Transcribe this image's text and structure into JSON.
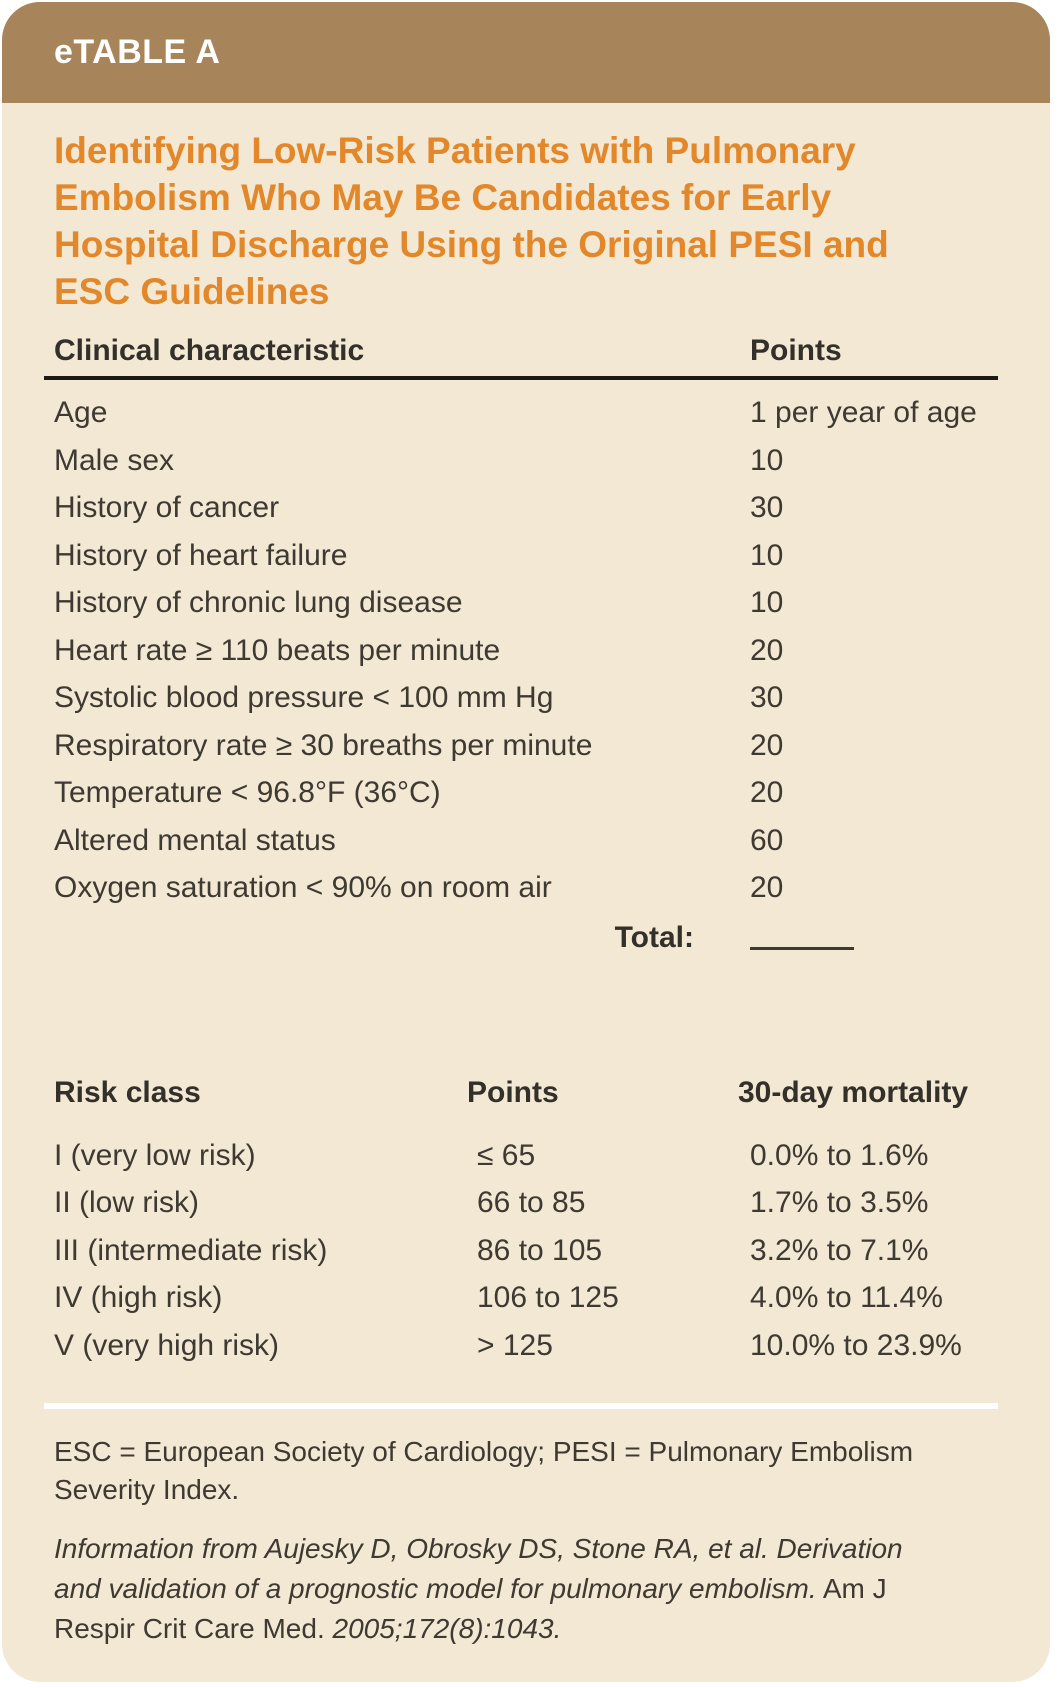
{
  "card": {
    "header_label": "eTABLE A",
    "title": "Identifying Low-Risk Patients with Pulmonary Embolism Who May Be Candidates for Early Hospital Discharge Using the Original PESI and ESC Guidelines"
  },
  "colors": {
    "header_bar": "#a8845b",
    "body_background": "#f2e8d4",
    "title_orange": "#e2872a",
    "text_dark": "#3e3931",
    "rule_dark": "#1c1b17",
    "divider_white": "#ffffff"
  },
  "pesi_table": {
    "columns": [
      "Clinical characteristic",
      "Points"
    ],
    "rows": [
      [
        "Age",
        "1 per year of age"
      ],
      [
        "Male sex",
        "10"
      ],
      [
        "History of cancer",
        "30"
      ],
      [
        "History of heart failure",
        "10"
      ],
      [
        "History of chronic lung disease",
        "10"
      ],
      [
        "Heart rate ≥ 110 beats per minute",
        "20"
      ],
      [
        "Systolic blood pressure < 100 mm Hg",
        "30"
      ],
      [
        "Respiratory rate ≥ 30 breaths per minute",
        "20"
      ],
      [
        "Temperature < 96.8°F (36°C)",
        "20"
      ],
      [
        "Altered mental status",
        "60"
      ],
      [
        "Oxygen saturation < 90% on room air",
        "20"
      ]
    ],
    "total_label": "Total:"
  },
  "risk_table": {
    "columns": [
      "Risk class",
      "Points",
      "30-day mortality"
    ],
    "rows": [
      [
        "I (very low risk)",
        "≤ 65",
        "0.0% to 1.6%"
      ],
      [
        "II (low risk)",
        "66 to 85",
        "1.7% to 3.5%"
      ],
      [
        "III (intermediate risk)",
        "86 to 105",
        "3.2% to 7.1%"
      ],
      [
        "IV (high risk)",
        "106 to 125",
        "4.0% to 11.4%"
      ],
      [
        "V (very high risk)",
        "> 125",
        "10.0% to 23.9%"
      ]
    ]
  },
  "footnotes": {
    "abbreviations": "ESC = European Society of Cardiology; PESI = Pulmonary Embolism Severity Index.",
    "credit_italic_1": "Information from Aujesky D, Obrosky DS, Stone RA, et al. Derivation and validation of a prognostic model for pulmonary embolism.",
    "credit_roman": "Am J Respir Crit Care Med.",
    "credit_italic_2": "2005;172(8):1043."
  }
}
